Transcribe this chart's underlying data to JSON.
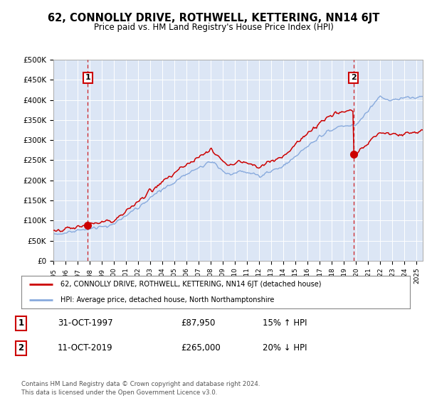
{
  "title": "62, CONNOLLY DRIVE, ROTHWELL, KETTERING, NN14 6JT",
  "subtitle": "Price paid vs. HM Land Registry's House Price Index (HPI)",
  "ylim": [
    0,
    500000
  ],
  "yticks": [
    0,
    50000,
    100000,
    150000,
    200000,
    250000,
    300000,
    350000,
    400000,
    450000,
    500000
  ],
  "ytick_labels": [
    "£0",
    "£50K",
    "£100K",
    "£150K",
    "£200K",
    "£250K",
    "£300K",
    "£350K",
    "£400K",
    "£450K",
    "£500K"
  ],
  "xlim_start": 1995.0,
  "xlim_end": 2025.5,
  "xticks": [
    1995,
    1996,
    1997,
    1998,
    1999,
    2000,
    2001,
    2002,
    2003,
    2004,
    2005,
    2006,
    2007,
    2008,
    2009,
    2010,
    2011,
    2012,
    2013,
    2014,
    2015,
    2016,
    2017,
    2018,
    2019,
    2020,
    2021,
    2022,
    2023,
    2024,
    2025
  ],
  "bg_color": "#dce6f5",
  "fig_bg_color": "#ffffff",
  "red_line_color": "#cc0000",
  "blue_line_color": "#88aadd",
  "annotation_box_color": "#cc0000",
  "vline_color": "#cc0000",
  "sale1_x": 1997.83,
  "sale1_y": 87950,
  "sale1_label": "1",
  "sale2_x": 2019.78,
  "sale2_y": 265000,
  "sale2_label": "2",
  "legend_line1": "62, CONNOLLY DRIVE, ROTHWELL, KETTERING, NN14 6JT (detached house)",
  "legend_line2": "HPI: Average price, detached house, North Northamptonshire",
  "footer1": "Contains HM Land Registry data © Crown copyright and database right 2024.",
  "footer2": "This data is licensed under the Open Government Licence v3.0.",
  "table_row1": [
    "1",
    "31-OCT-1997",
    "£87,950",
    "15% ↑ HPI"
  ],
  "table_row2": [
    "2",
    "11-OCT-2019",
    "£265,000",
    "20% ↓ HPI"
  ]
}
